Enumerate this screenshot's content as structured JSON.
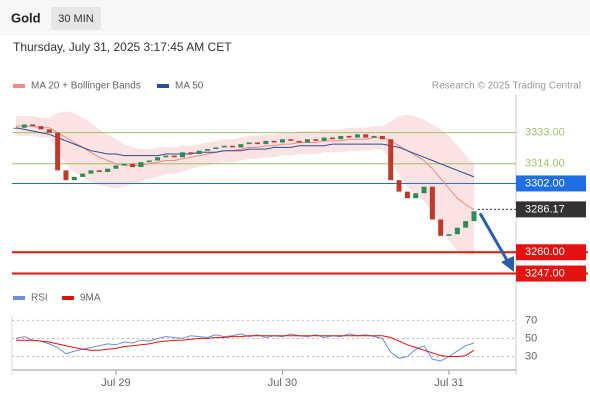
{
  "chart_data": [
    {
      "type": "candlestick",
      "title": "Gold",
      "timeframe": "30 MIN",
      "subtitle": "Thursday, July 31, 2025 3:17:45 AM CET",
      "source": "Research © 2025 Trading Central",
      "up_color": "#2e8b57",
      "down_color": "#c0392b",
      "categories": [
        null,
        null,
        null,
        null,
        null,
        null,
        null,
        null,
        null,
        null,
        null,
        null,
        "Jul 29",
        null,
        null,
        null,
        null,
        null,
        null,
        null,
        null,
        null,
        null,
        null,
        null,
        null,
        null,
        null,
        null,
        null,
        null,
        null,
        "Jul 30",
        null,
        null,
        null,
        null,
        null,
        null,
        null,
        null,
        null,
        null,
        null,
        null,
        null,
        null,
        null,
        null,
        null,
        null,
        null,
        "Jul 31",
        null,
        null,
        null
      ],
      "ylim": [
        3240,
        3356
      ],
      "series": [
        {
          "values": [
            3336,
            3338,
            3337,
            3335,
            3333,
            3310,
            3304,
            3306,
            3308,
            3310,
            3309,
            3311,
            3313,
            3314,
            3312,
            3315,
            3316,
            3318,
            3319,
            3318,
            3321,
            3320,
            3322,
            3323,
            3324,
            3325,
            3324,
            3326,
            3327,
            3326,
            3328,
            3327,
            3329,
            3328,
            3327,
            3329,
            3328,
            3330,
            3329,
            3331,
            3330,
            3332,
            3330,
            3331,
            3329,
            3304,
            3297,
            3293,
            3296,
            3300,
            3280,
            3270,
            3271,
            3275,
            3279,
            3285
          ]
        },
        {
          "name": "MA 20 + Bollinger Bands",
          "color": "#f08a8a",
          "band_color": "#fbdada",
          "values": [
            3337,
            3337,
            3337,
            3336,
            3336,
            3333,
            3330,
            3327,
            3324,
            3321,
            3318,
            3316,
            3314,
            3313,
            3313,
            3313,
            3314,
            3315,
            3316,
            3316,
            3317,
            3318,
            3319,
            3320,
            3321,
            3322,
            3322,
            3323,
            3324,
            3324,
            3325,
            3325,
            3326,
            3326,
            3327,
            3327,
            3327,
            3328,
            3328,
            3328,
            3329,
            3329,
            3329,
            3330,
            3330,
            3328,
            3325,
            3322,
            3319,
            3316,
            3311,
            3305,
            3299,
            3293,
            3289,
            3286
          ],
          "upper": [
            3343,
            3343,
            3343,
            3342,
            3342,
            3345,
            3346,
            3345,
            3342,
            3339,
            3335,
            3332,
            3329,
            3326,
            3324,
            3323,
            3323,
            3324,
            3324,
            3324,
            3325,
            3325,
            3326,
            3327,
            3328,
            3329,
            3329,
            3330,
            3331,
            3331,
            3332,
            3332,
            3333,
            3333,
            3334,
            3334,
            3334,
            3335,
            3335,
            3335,
            3336,
            3336,
            3336,
            3337,
            3337,
            3340,
            3343,
            3344,
            3343,
            3341,
            3338,
            3335,
            3331,
            3325,
            3319,
            3314
          ],
          "lower": [
            3331,
            3331,
            3331,
            3330,
            3330,
            3321,
            3314,
            3309,
            3306,
            3303,
            3301,
            3300,
            3299,
            3300,
            3302,
            3303,
            3305,
            3306,
            3308,
            3308,
            3309,
            3311,
            3312,
            3313,
            3314,
            3315,
            3315,
            3316,
            3317,
            3317,
            3318,
            3318,
            3319,
            3319,
            3320,
            3320,
            3320,
            3321,
            3321,
            3321,
            3322,
            3322,
            3322,
            3323,
            3323,
            3316,
            3307,
            3300,
            3295,
            3291,
            3284,
            3275,
            3267,
            3261,
            3259,
            3258
          ]
        },
        {
          "name": "MA 50",
          "color": "#2c4f8f",
          "values": [
            3336,
            3335,
            3334,
            3333,
            3332,
            3330,
            3328,
            3326,
            3324,
            3322,
            3321,
            3320,
            3320,
            3319,
            3319,
            3319,
            3319,
            3319,
            3320,
            3320,
            3320,
            3320,
            3321,
            3321,
            3321,
            3322,
            3322,
            3322,
            3323,
            3323,
            3323,
            3324,
            3324,
            3324,
            3325,
            3325,
            3325,
            3325,
            3326,
            3326,
            3326,
            3326,
            3326,
            3326,
            3326,
            3325,
            3324,
            3322,
            3320,
            3318,
            3316,
            3314,
            3312,
            3310,
            3308,
            3306
          ]
        }
      ],
      "levels": [
        {
          "value": 3333,
          "label": "3333.00",
          "color": "#9bc46a",
          "line": "plot",
          "box": false
        },
        {
          "value": 3314,
          "label": "3314.00",
          "color": "#9bc46a",
          "line": "plot",
          "box": false
        },
        {
          "value": 3302,
          "label": "3302.00",
          "color": "#1e6ee6",
          "line": "plot",
          "box": true
        },
        {
          "value": 3286.17,
          "label": "3286.17",
          "color": "#333333",
          "line": "dotted",
          "box": true
        },
        {
          "value": 3260,
          "label": "3260.00",
          "color": "#e3140f",
          "line": "full",
          "box": true
        },
        {
          "value": 3247,
          "label": "3247.00",
          "color": "#e3140f",
          "line": "full",
          "box": true
        }
      ]
    },
    {
      "type": "line",
      "ylim": [
        15,
        76
      ],
      "yticks": [
        70,
        50,
        30
      ],
      "series": [
        {
          "name": "RSI",
          "color": "#6b8fd8",
          "values": [
            50,
            52,
            48,
            47,
            44,
            40,
            33,
            36,
            38,
            40,
            42,
            44,
            43,
            46,
            45,
            48,
            47,
            50,
            52,
            51,
            50,
            53,
            52,
            51,
            54,
            52,
            53,
            55,
            52,
            54,
            51,
            53,
            52,
            55,
            53,
            52,
            54,
            51,
            53,
            52,
            55,
            53,
            54,
            52,
            50,
            35,
            28,
            30,
            38,
            42,
            27,
            25,
            30,
            36,
            42,
            45
          ]
        },
        {
          "name": "9MA",
          "color": "#e3140f",
          "values": [
            48,
            48,
            48,
            47,
            46,
            44,
            42,
            40,
            38,
            37,
            37,
            38,
            39,
            41,
            42,
            43,
            44,
            46,
            47,
            48,
            48,
            49,
            50,
            50,
            51,
            51,
            52,
            52,
            53,
            53,
            53,
            53,
            53,
            53,
            53,
            53,
            53,
            53,
            53,
            53,
            53,
            53,
            53,
            53,
            53,
            51,
            47,
            43,
            40,
            37,
            34,
            31,
            30,
            30,
            31,
            37
          ]
        }
      ]
    }
  ]
}
